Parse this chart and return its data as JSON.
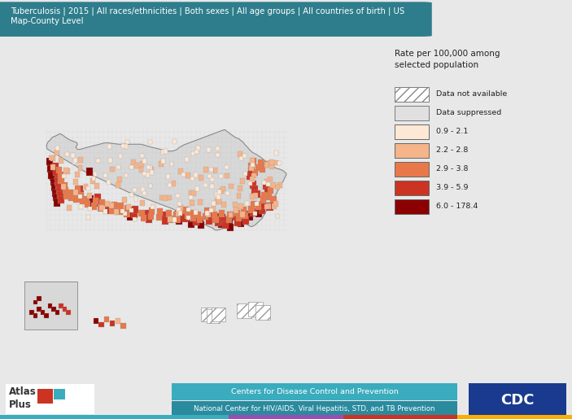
{
  "title_text": "Tuberculosis | 2015 | All races/ethnicities | Both sexes | All age groups | All countries of birth | US\nMap-County Level",
  "title_bg_color": "#2e7d8c",
  "title_text_color": "#ffffff",
  "background_color": "#e8e8e8",
  "map_bg_color": "#ffffff",
  "border_color": "#3ab0c0",
  "legend_title": "Rate per 100,000 among\nselected population",
  "legend_labels": [
    "Data not available",
    "Data suppressed",
    "0.9 - 2.1",
    "2.2 - 2.8",
    "2.9 - 3.8",
    "3.9 - 5.9",
    "6.0 - 178.4"
  ],
  "legend_colors": [
    "#ffffff",
    "#e0e0e0",
    "#fde8d5",
    "#f5b48a",
    "#e8784a",
    "#cc3322",
    "#8b0000"
  ],
  "legend_hatches": [
    "///",
    "===",
    "",
    "",
    "",
    "",
    ""
  ],
  "footer_bg1": "#3aacbe",
  "footer_bg2": "#2a8a9e",
  "footer_text1": "Centers for Disease Control and Prevention",
  "footer_text2": "National Center for HIV/AIDS, Viral Hepatitis, STD, and TB Prevention",
  "cdc_logo_bg": "#1a3a8f",
  "county_default": "#d8d8d8",
  "county_edge": "#bbbbbb",
  "state_edge": "#888888"
}
